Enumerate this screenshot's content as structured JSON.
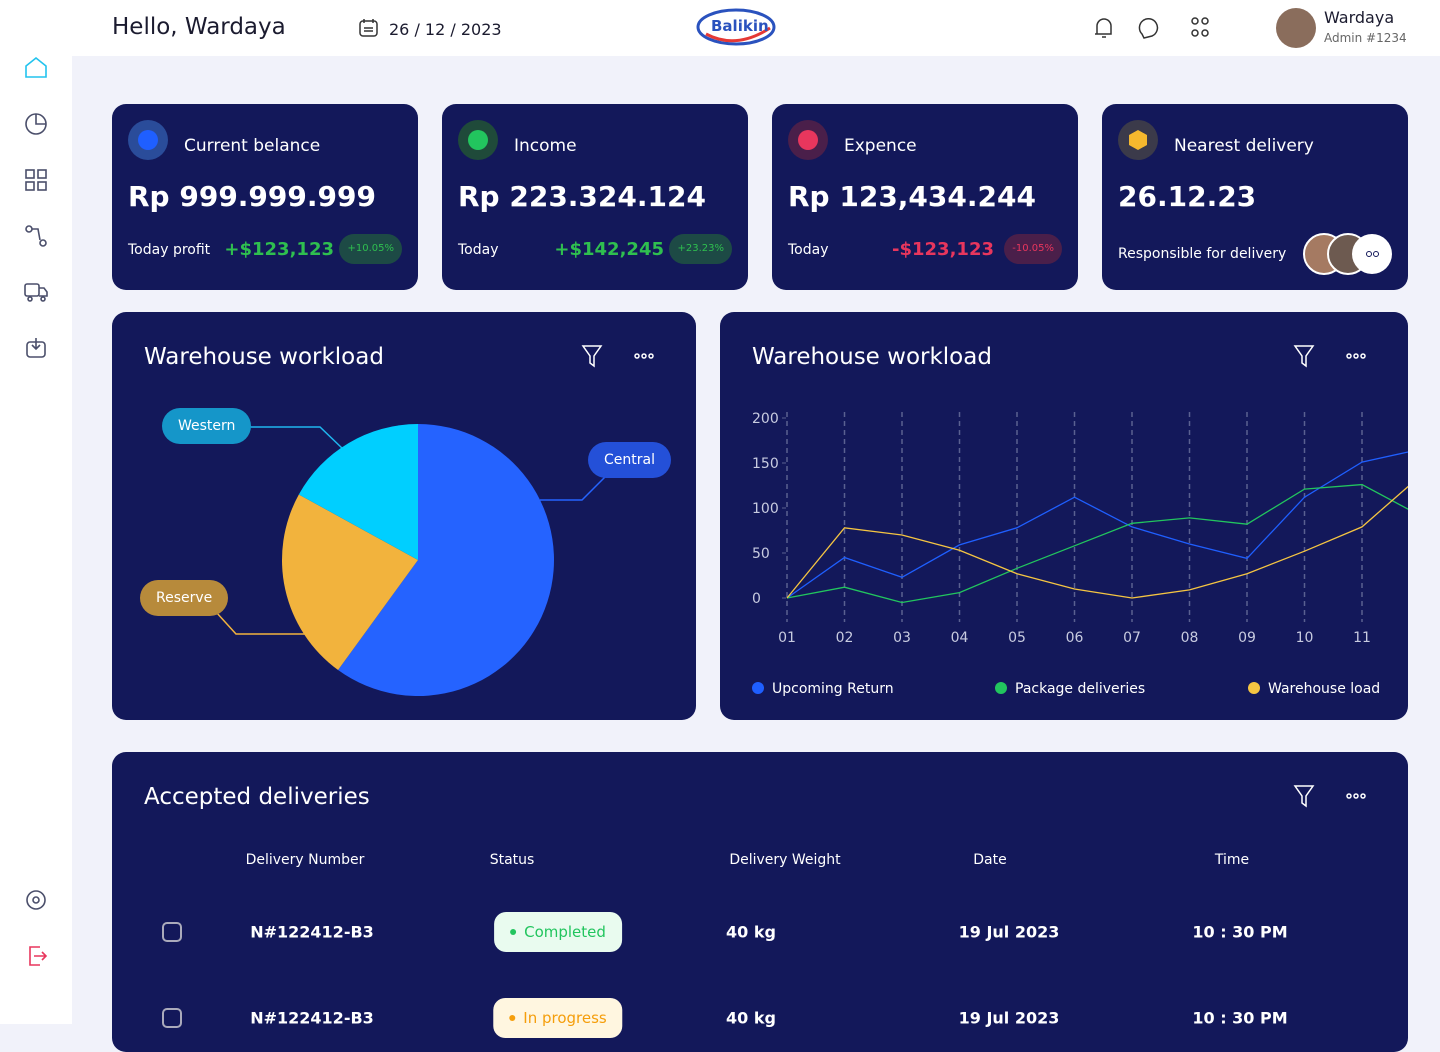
{
  "header": {
    "greeting": "Hello, Wardaya",
    "date": "26 / 12 / 2023",
    "logo": "Balikin",
    "user_name": "Wardaya",
    "user_role": "Admin #1234"
  },
  "cards": [
    {
      "title": "Current belance",
      "value": "Rp 999.999.999",
      "label": "Today profit",
      "change": "+$123,123",
      "change_percent": "+10.05%"
    },
    {
      "title": "Income",
      "value": "Rp 223.324.124",
      "label": "Today",
      "change": "+$142,245",
      "change_percent": "+23.23%"
    },
    {
      "title": "Expence",
      "value": "Rp 123,434.244",
      "label": "Today",
      "change": "-$123,123",
      "change_percent": "-10.05%"
    }
  ],
  "delivery_card": {
    "title": "Nearest delivery",
    "value": "26.12.23",
    "label": "Responsible for delivery"
  },
  "chart_data": [
    {
      "type": "pie",
      "title": "Warehouse workload",
      "categories": [
        "Central",
        "Reserve",
        "Western"
      ],
      "values": [
        60,
        23,
        17
      ],
      "colors": [
        "#2563ff",
        "#f2b33d",
        "#00cfff"
      ]
    },
    {
      "type": "line",
      "title": "Warehouse workload",
      "categories": [
        "01",
        "02",
        "03",
        "04",
        "05",
        "06",
        "07",
        "08",
        "09",
        "10",
        "11",
        null
      ],
      "series": [
        {
          "name": "Upcoming Return",
          "color": "#1f5fff",
          "values": [
            0,
            45,
            23,
            59,
            78,
            112,
            79,
            60,
            44,
            112,
            151,
            165
          ]
        },
        {
          "name": "Package deliveries",
          "color": "#22c55e",
          "values": [
            0,
            12,
            -5,
            6,
            33,
            58,
            83,
            89,
            82,
            121,
            126,
            92
          ]
        },
        {
          "name": "Warehouse load",
          "color": "#f5c542",
          "values": [
            0,
            78,
            70,
            53,
            27,
            10,
            0,
            9,
            27,
            52,
            79,
            135
          ]
        }
      ],
      "ylim": [
        0,
        200
      ],
      "yticks": [
        0,
        50,
        100,
        150,
        200
      ],
      "grid": true
    }
  ],
  "table": {
    "title": "Accepted deliveries",
    "columns": [
      "Delivery Number",
      "Status",
      "Delivery Weight",
      "Date",
      "Time"
    ],
    "rows": [
      [
        "N#122412-B3",
        "Completed",
        "40 kg",
        "19 Jul 2023",
        "10 : 30 PM"
      ],
      [
        "N#122412-B3",
        "In progress",
        "40 kg",
        "19 Jul 2023",
        "10 : 30 PM"
      ]
    ]
  }
}
